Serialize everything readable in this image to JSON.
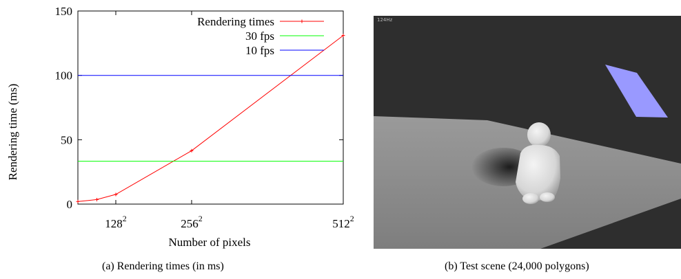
{
  "chart_data": {
    "type": "line",
    "ylabel": "Rendering time (ms)",
    "xlabel": "Number of pixels",
    "ylim": [
      0,
      150
    ],
    "yticks": [
      0,
      50,
      100,
      150
    ],
    "xlim": [
      64,
      512
    ],
    "xticks": [
      {
        "value": 128,
        "base": "128",
        "exp": "2"
      },
      {
        "value": 256,
        "base": "256",
        "exp": "2"
      },
      {
        "value": 512,
        "base": "512",
        "exp": "2"
      }
    ],
    "legend_position": "top-right",
    "series": [
      {
        "name": "Rendering times",
        "color": "#ff0000",
        "markers": true,
        "x": [
          64,
          96,
          128,
          256,
          512
        ],
        "y": [
          2,
          3.5,
          7.5,
          41.5,
          131
        ]
      },
      {
        "name": "30 fps",
        "color": "#00ff00",
        "markers": false,
        "x": [
          64,
          512
        ],
        "y": [
          33.3,
          33.3
        ]
      },
      {
        "name": "10 fps",
        "color": "#0000ff",
        "markers": false,
        "x": [
          64,
          512
        ],
        "y": [
          100,
          100
        ]
      }
    ]
  },
  "captions": {
    "a": "(a)  Rendering times (in ms)",
    "b": "(b)  Test scene (24,000 polygons)"
  },
  "scene": {
    "overlay_text": "124Hz",
    "colors": {
      "background": "#2e2e2e",
      "floor": "#8c8c8c",
      "quad": "#9999ff",
      "statue": "#e6e6e6"
    }
  }
}
